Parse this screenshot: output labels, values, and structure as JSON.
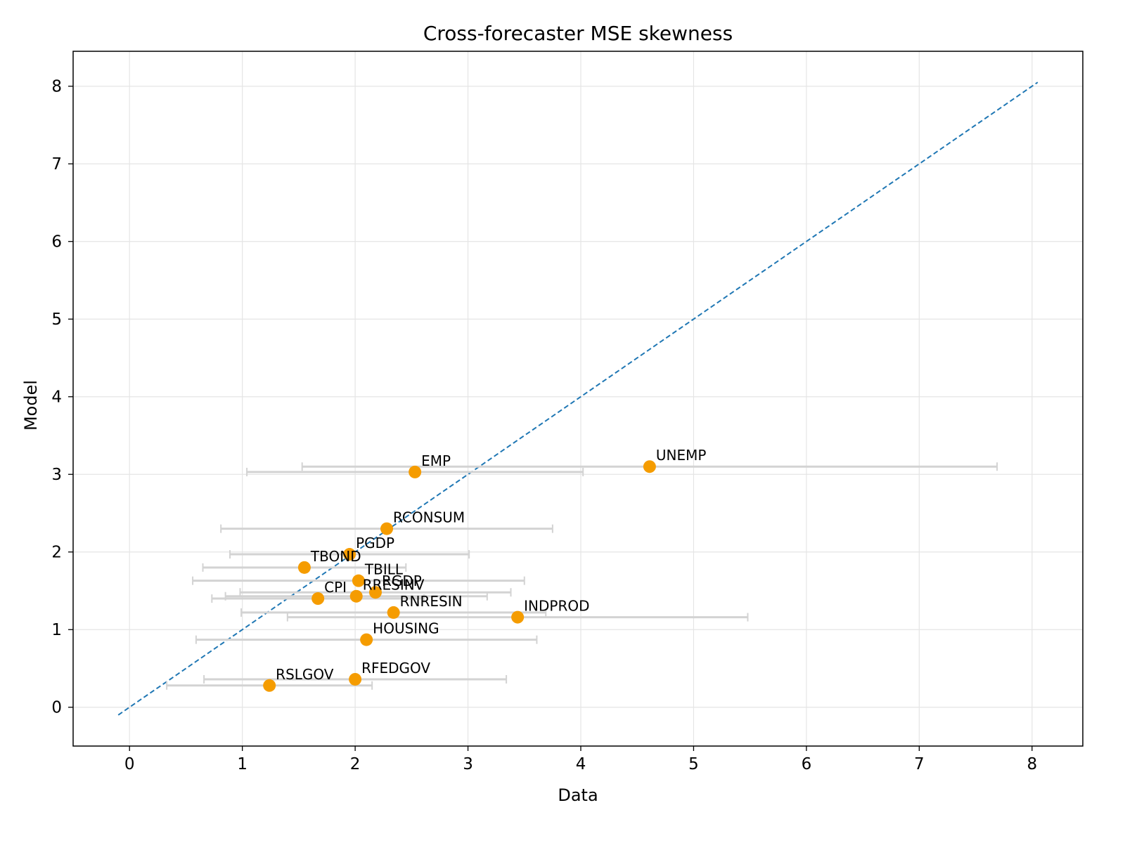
{
  "chart_data": {
    "type": "scatter",
    "title": "Cross-forecaster MSE skewness",
    "xlabel": "Data",
    "ylabel": "Model",
    "xlim": [
      -0.5,
      8.45
    ],
    "ylim": [
      -0.5,
      8.45
    ],
    "xticks": [
      0,
      1,
      2,
      3,
      4,
      5,
      6,
      7,
      8
    ],
    "yticks": [
      0,
      1,
      2,
      3,
      4,
      5,
      6,
      7,
      8
    ],
    "grid": true,
    "reference_line": {
      "style": "dashed",
      "from": [
        -0.1,
        -0.1
      ],
      "to": [
        8.05,
        8.05
      ]
    },
    "points": [
      {
        "label": "UNEMP",
        "x": 4.61,
        "y": 3.1,
        "xerr_low": 1.53,
        "xerr_high": 7.69
      },
      {
        "label": "EMP",
        "x": 2.53,
        "y": 3.03,
        "xerr_low": 1.04,
        "xerr_high": 4.02
      },
      {
        "label": "RCONSUM",
        "x": 2.28,
        "y": 2.3,
        "xerr_low": 0.81,
        "xerr_high": 3.75
      },
      {
        "label": "PGDP",
        "x": 1.95,
        "y": 1.97,
        "xerr_low": 0.89,
        "xerr_high": 3.01
      },
      {
        "label": "TBOND",
        "x": 1.55,
        "y": 1.8,
        "xerr_low": 0.65,
        "xerr_high": 2.45
      },
      {
        "label": "TBILL",
        "x": 2.03,
        "y": 1.63,
        "xerr_low": 0.56,
        "xerr_high": 3.5
      },
      {
        "label": "RGDP",
        "x": 2.18,
        "y": 1.48,
        "xerr_low": 0.98,
        "xerr_high": 3.38
      },
      {
        "label": "RRESINV",
        "x": 2.01,
        "y": 1.43,
        "xerr_low": 0.85,
        "xerr_high": 3.17
      },
      {
        "label": "CPI",
        "x": 1.67,
        "y": 1.4,
        "xerr_low": 0.73,
        "xerr_high": 2.61
      },
      {
        "label": "RNRESIN",
        "x": 2.34,
        "y": 1.22,
        "xerr_low": 0.99,
        "xerr_high": 3.69
      },
      {
        "label": "INDPROD",
        "x": 3.44,
        "y": 1.16,
        "xerr_low": 1.4,
        "xerr_high": 5.48
      },
      {
        "label": "HOUSING",
        "x": 2.1,
        "y": 0.87,
        "xerr_low": 0.59,
        "xerr_high": 3.61
      },
      {
        "label": "RFEDGOV",
        "x": 2.0,
        "y": 0.36,
        "xerr_low": 0.66,
        "xerr_high": 3.34
      },
      {
        "label": "RSLGOV",
        "x": 1.24,
        "y": 0.28,
        "xerr_low": 0.33,
        "xerr_high": 2.15
      }
    ],
    "colors": {
      "points": "#f59c00",
      "error_bars": "#d3d3d3",
      "reference_line": "#1f77b4",
      "grid": "#e5e5e5",
      "axes": "#000000"
    }
  }
}
